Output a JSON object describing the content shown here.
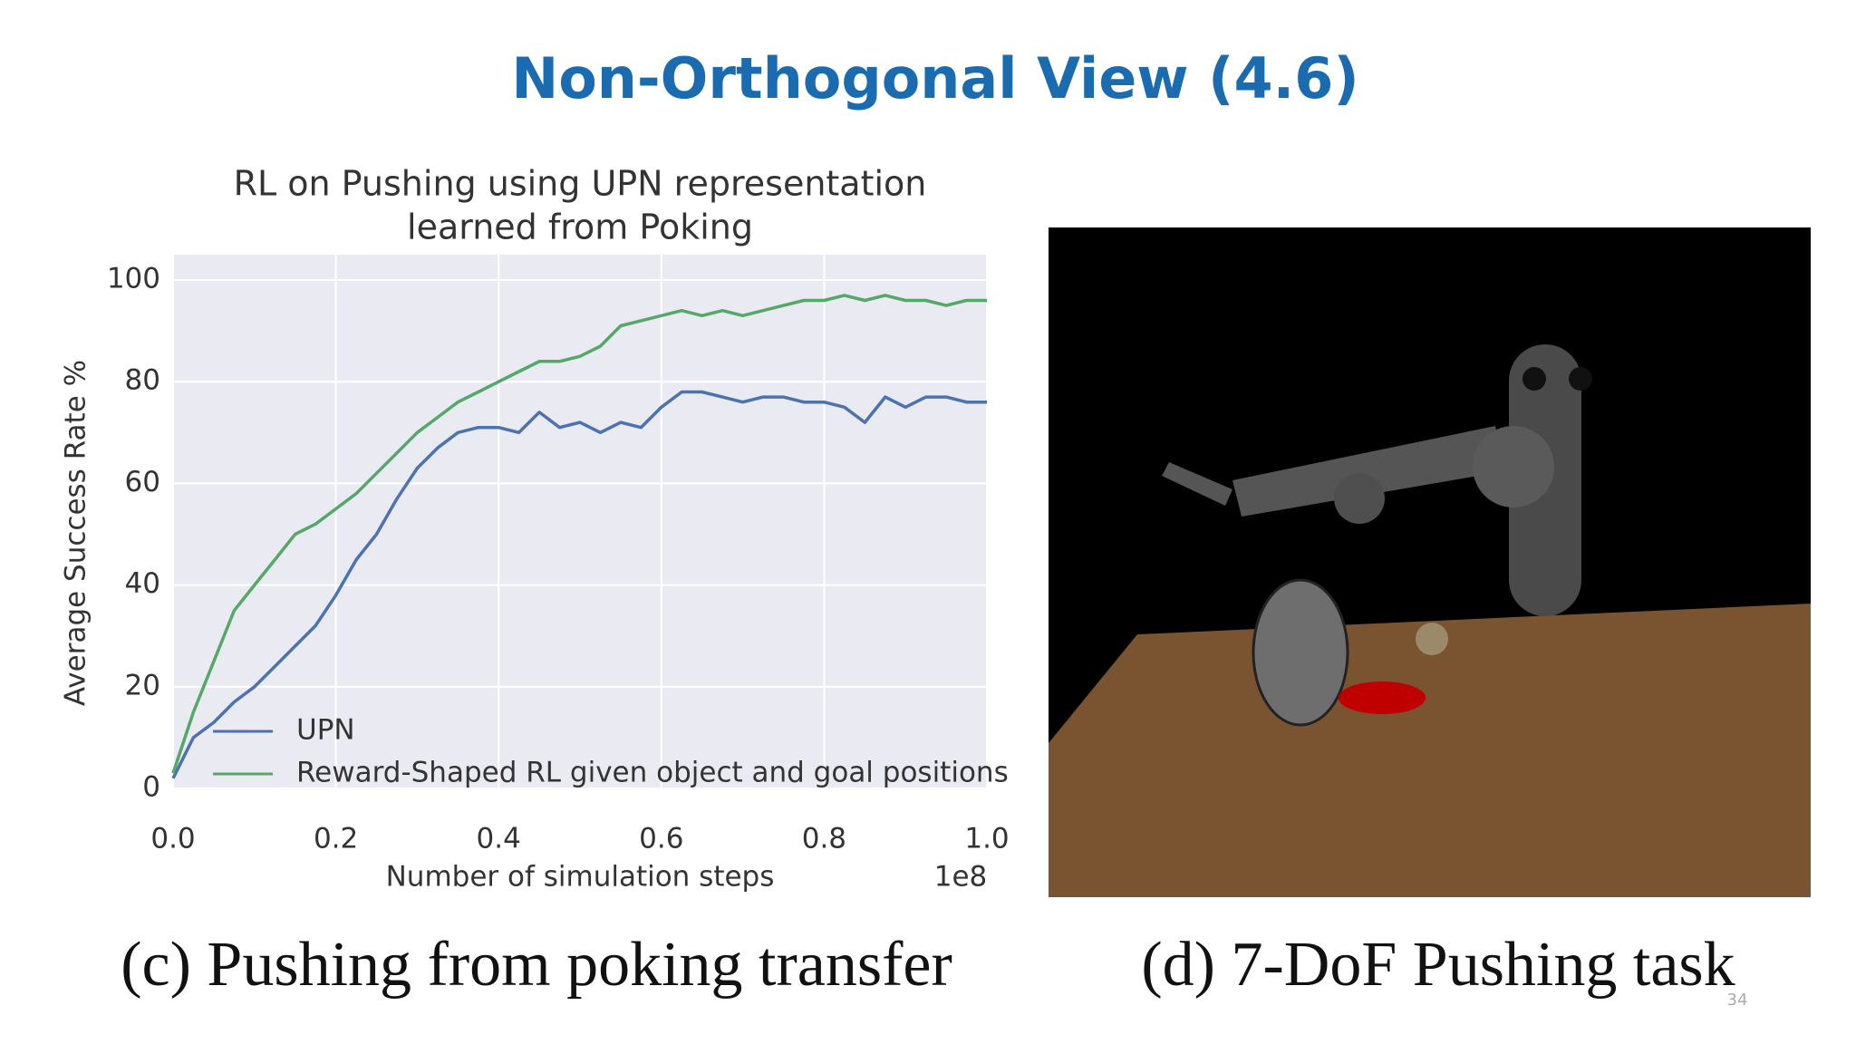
{
  "slide_title": "Non-Orthogonal View (4.6)",
  "chart_data": {
    "type": "line",
    "title": [
      "RL on Pushing using UPN representation",
      "learned from Poking"
    ],
    "xlabel": "Number of simulation steps",
    "x_offset_label": "1e8",
    "ylabel": "Average Success Rate %",
    "x": [
      0,
      0.025,
      0.05,
      0.075,
      0.1,
      0.125,
      0.15,
      0.175,
      0.2,
      0.225,
      0.25,
      0.275,
      0.3,
      0.325,
      0.35,
      0.375,
      0.4,
      0.425,
      0.45,
      0.475,
      0.5,
      0.525,
      0.55,
      0.575,
      0.6,
      0.625,
      0.65,
      0.675,
      0.7,
      0.725,
      0.75,
      0.775,
      0.8,
      0.825,
      0.85,
      0.875,
      0.9,
      0.925,
      0.95,
      0.975,
      1.0
    ],
    "series": [
      {
        "name": "UPN",
        "color": "#4c72b0",
        "values": [
          2,
          10,
          13,
          17,
          20,
          24,
          28,
          32,
          38,
          45,
          50,
          57,
          63,
          67,
          70,
          71,
          71,
          70,
          74,
          71,
          72,
          70,
          72,
          71,
          75,
          78,
          78,
          77,
          76,
          77,
          77,
          76,
          76,
          75,
          72,
          77,
          75,
          77,
          77,
          76,
          76
        ]
      },
      {
        "name": "Reward-Shaped RL given object and goal positions",
        "color": "#55a868",
        "values": [
          3,
          15,
          25,
          35,
          40,
          45,
          50,
          52,
          55,
          58,
          62,
          66,
          70,
          73,
          76,
          78,
          80,
          82,
          84,
          84,
          85,
          87,
          91,
          92,
          93,
          94,
          93,
          94,
          93,
          94,
          95,
          96,
          96,
          97,
          96,
          97,
          96,
          96,
          95,
          96,
          96
        ]
      }
    ],
    "xlim": [
      0,
      1.0
    ],
    "xticks": [
      {
        "value": 0,
        "label": "0.0"
      },
      {
        "value": 0.2,
        "label": "0.2"
      },
      {
        "value": 0.4,
        "label": "0.4"
      },
      {
        "value": 0.6,
        "label": "0.6"
      },
      {
        "value": 0.8,
        "label": "0.8"
      },
      {
        "value": 1.0,
        "label": "1.0"
      }
    ],
    "ylim": [
      0,
      105
    ],
    "yticks": [
      0,
      20,
      40,
      60,
      80,
      100
    ],
    "grid": true,
    "legend": "lower left"
  },
  "captions": [
    "(c) Pushing from poking transfer",
    "(d) 7-DoF Pushing task"
  ],
  "page_number": "34"
}
